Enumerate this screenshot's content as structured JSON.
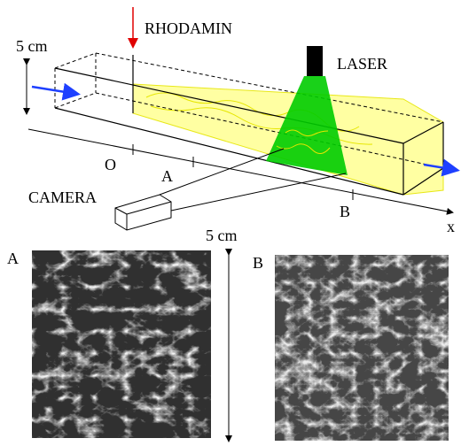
{
  "schematic": {
    "dye_label": "RHODAMIN",
    "laser_label": "LASER",
    "camera_label": "CAMERA",
    "channel_height_label": "5 cm",
    "origin_label": "O",
    "position_a_label": "A",
    "position_b_label": "B",
    "axis_label": "x"
  },
  "images": {
    "scale_label": "5 cm",
    "panel_a_label": "A",
    "panel_b_label": "B"
  },
  "colors": {
    "fluid": "#ffff99",
    "fluid_outline": "#e6e600",
    "laser_sheet": "#00cc00",
    "flow_arrow": "#1e40ff",
    "dye_arrow": "#e00000"
  }
}
